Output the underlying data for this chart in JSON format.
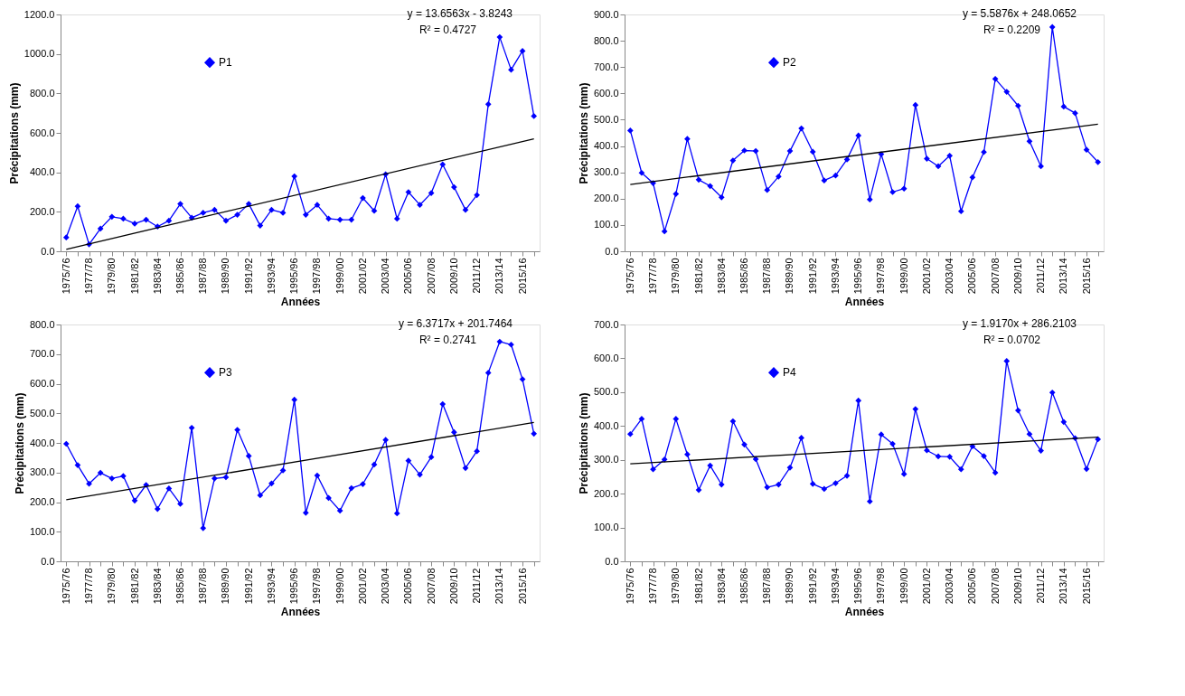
{
  "chart_data": [
    {
      "type": "line",
      "xlabel": "Années",
      "ylabel": "Précipitations (mm)",
      "marker": "diamond",
      "line_style": "solid",
      "grid": false,
      "legend": "top left",
      "categories": [
        "1975/76",
        null,
        "1977/78",
        null,
        "1979/80",
        null,
        "1981/82",
        null,
        "1983/84",
        null,
        "1985/86",
        null,
        "1987/88",
        null,
        "1989/90",
        null,
        "1991/92",
        null,
        "1993/94",
        null,
        "1995/96",
        null,
        "1997/98",
        null,
        "1999/00",
        null,
        "2001/02",
        null,
        "2003/04",
        null,
        "2005/06",
        null,
        "2007/08",
        null,
        "2009/10",
        null,
        "2011/12",
        null,
        "2013/14",
        null,
        "2015/16",
        null
      ],
      "ylim": [
        0,
        1200
      ],
      "yticks": [
        {
          "value": 0,
          "label": "0.0"
        },
        {
          "value": 200,
          "label": "200.0"
        },
        {
          "value": 400,
          "label": "400.0"
        },
        {
          "value": 600,
          "label": "600.0"
        },
        {
          "value": 800,
          "label": "800.0"
        },
        {
          "value": 1000,
          "label": "1000.0"
        },
        {
          "value": 1200,
          "label": "1200.0"
        }
      ],
      "annotations": [
        "y = 13.6563x - 3.8243",
        "R² = 0.4727"
      ],
      "series": [
        {
          "name": "P1",
          "color": "#0000ff",
          "values": [
            70,
            228,
            35,
            115,
            175,
            165,
            140,
            160,
            125,
            155,
            240,
            170,
            195,
            210,
            155,
            185,
            240,
            130,
            210,
            195,
            380,
            185,
            235,
            165,
            160,
            160,
            270,
            205,
            390,
            165,
            300,
            235,
            295,
            440,
            325,
            210,
            285,
            745,
            1085,
            920,
            1015,
            685
          ]
        },
        {
          "type": "line",
          "color": "#000000",
          "marker": "none",
          "values": [
            10,
            null,
            null,
            null,
            null,
            null,
            null,
            null,
            null,
            null,
            null,
            null,
            null,
            null,
            null,
            null,
            null,
            null,
            null,
            null,
            null,
            null,
            null,
            null,
            null,
            null,
            null,
            null,
            null,
            null,
            null,
            null,
            null,
            null,
            null,
            null,
            null,
            null,
            null,
            null,
            null,
            570
          ]
        }
      ]
    },
    {
      "type": "line",
      "xlabel": "Années",
      "ylabel": "Précipitations (mm)",
      "marker": "diamond",
      "line_style": "solid",
      "grid": false,
      "legend": "top left",
      "categories": [
        "1975/76",
        null,
        "1977/78",
        null,
        "1979/80",
        null,
        "1981/82",
        null,
        "1983/84",
        null,
        "1985/86",
        null,
        "1987/88",
        null,
        "1989/90",
        null,
        "1991/92",
        null,
        "1993/94",
        null,
        "1995/96",
        null,
        "1997/98",
        null,
        "1999/00",
        null,
        "2001/02",
        null,
        "2003/04",
        null,
        "2005/06",
        null,
        "2007/08",
        null,
        "2009/10",
        null,
        "2011/12",
        null,
        "2013/14",
        null,
        "2015/16",
        null
      ],
      "ylim": [
        0,
        900
      ],
      "yticks": [
        {
          "value": 0,
          "label": "0.0"
        },
        {
          "value": 100,
          "label": "100.0"
        },
        {
          "value": 200,
          "label": "200.0"
        },
        {
          "value": 300,
          "label": "300.0"
        },
        {
          "value": 400,
          "label": "400.0"
        },
        {
          "value": 500,
          "label": "500.0"
        },
        {
          "value": 600,
          "label": "600.0"
        },
        {
          "value": 700,
          "label": "700.0"
        },
        {
          "value": 800,
          "label": "800.0"
        },
        {
          "value": 900,
          "label": "900.0"
        }
      ],
      "annotations": [
        "y = 5.5876x + 248.0652",
        "R² = 0.2209"
      ],
      "series": [
        {
          "name": "P2",
          "color": "#0000ff",
          "values": [
            459,
            298,
            259,
            76,
            218,
            427,
            272,
            248,
            205,
            345,
            383,
            381,
            233,
            284,
            381,
            467,
            378,
            269,
            288,
            349,
            440,
            197,
            369,
            225,
            238,
            556,
            352,
            323,
            363,
            152,
            281,
            377,
            655,
            606,
            553,
            418,
            323,
            852,
            550,
            525,
            386,
            339
          ]
        },
        {
          "type": "line",
          "color": "#000000",
          "marker": "none",
          "values": [
            254,
            null,
            null,
            null,
            null,
            null,
            null,
            null,
            null,
            null,
            null,
            null,
            null,
            null,
            null,
            null,
            null,
            null,
            null,
            null,
            null,
            null,
            null,
            null,
            null,
            null,
            null,
            null,
            null,
            null,
            null,
            null,
            null,
            null,
            null,
            null,
            null,
            null,
            null,
            null,
            null,
            483
          ]
        }
      ]
    },
    {
      "type": "line",
      "xlabel": "Années",
      "ylabel": "Précipitations (mm)",
      "marker": "diamond",
      "line_style": "solid",
      "grid": false,
      "legend": "top left",
      "categories": [
        "1975/76",
        null,
        "1977/78",
        null,
        "1979/80",
        null,
        "1981/82",
        null,
        "1983/84",
        null,
        "1985/86",
        null,
        "1987/88",
        null,
        "1989/90",
        null,
        "1991/92",
        null,
        "1993/94",
        null,
        "1995/96",
        null,
        "1997/98",
        null,
        "1999/00",
        null,
        "2001/02",
        null,
        "2003/04",
        null,
        "2005/06",
        null,
        "2007/08",
        null,
        "2009/10",
        null,
        "2011/12",
        null,
        "2013/14",
        null,
        "2015/16",
        null
      ],
      "ylim": [
        0,
        800
      ],
      "yticks": [
        {
          "value": 0,
          "label": "0.0"
        },
        {
          "value": 100,
          "label": "100.0"
        },
        {
          "value": 200,
          "label": "200.0"
        },
        {
          "value": 300,
          "label": "300.0"
        },
        {
          "value": 400,
          "label": "400.0"
        },
        {
          "value": 500,
          "label": "500.0"
        },
        {
          "value": 600,
          "label": "600.0"
        },
        {
          "value": 700,
          "label": "700.0"
        },
        {
          "value": 800,
          "label": "800.0"
        }
      ],
      "annotations": [
        "y = 6.3717x + 201.7464",
        "R² = 0.2741"
      ],
      "series": [
        {
          "name": "P3",
          "color": "#0000ff",
          "values": [
            397,
            325,
            262,
            299,
            280,
            288,
            205,
            258,
            177,
            246,
            194,
            451,
            112,
            280,
            284,
            444,
            356,
            223,
            263,
            307,
            546,
            164,
            290,
            214,
            171,
            247,
            261,
            327,
            410,
            162,
            340,
            293,
            352,
            531,
            436,
            315,
            372,
            637,
            742,
            732,
            615,
            431
          ]
        },
        {
          "type": "line",
          "color": "#000000",
          "marker": "none",
          "values": [
            208,
            null,
            null,
            null,
            null,
            null,
            null,
            null,
            null,
            null,
            null,
            null,
            null,
            null,
            null,
            null,
            null,
            null,
            null,
            null,
            null,
            null,
            null,
            null,
            null,
            null,
            null,
            null,
            null,
            null,
            null,
            null,
            null,
            null,
            null,
            null,
            null,
            null,
            null,
            null,
            null,
            469
          ]
        }
      ]
    },
    {
      "type": "line",
      "xlabel": "Années",
      "ylabel": "Précipitations (mm)",
      "marker": "diamond",
      "line_style": "solid",
      "grid": false,
      "legend": "top left",
      "categories": [
        "1975/76",
        null,
        "1977/78",
        null,
        "1979/80",
        null,
        "1981/82",
        null,
        "1983/84",
        null,
        "1985/86",
        null,
        "1987/88",
        null,
        "1989/90",
        null,
        "1991/92",
        null,
        "1993/94",
        null,
        "1995/96",
        null,
        "1997/98",
        null,
        "1999/00",
        null,
        "2001/02",
        null,
        "2003/04",
        null,
        "2005/06",
        null,
        "2007/08",
        null,
        "2009/10",
        null,
        "2011/12",
        null,
        "2013/14",
        null,
        "2015/16",
        null
      ],
      "ylim": [
        0,
        700
      ],
      "yticks": [
        {
          "value": 0,
          "label": "0.0"
        },
        {
          "value": 100,
          "label": "100.0"
        },
        {
          "value": 200,
          "label": "200.0"
        },
        {
          "value": 300,
          "label": "300.0"
        },
        {
          "value": 400,
          "label": "400.0"
        },
        {
          "value": 500,
          "label": "500.0"
        },
        {
          "value": 600,
          "label": "600.0"
        },
        {
          "value": 700,
          "label": "700.0"
        }
      ],
      "annotations": [
        "y = 1.9170x + 286.2103",
        "R² = 0.0702"
      ],
      "series": [
        {
          "name": "P4",
          "color": "#0000ff",
          "values": [
            376,
            421,
            272,
            301,
            421,
            316,
            211,
            283,
            227,
            414,
            345,
            302,
            219,
            227,
            277,
            365,
            229,
            214,
            231,
            253,
            475,
            177,
            375,
            347,
            258,
            450,
            328,
            310,
            309,
            272,
            340,
            311,
            262,
            592,
            446,
            376,
            327,
            499,
            412,
            364,
            273,
            361
          ]
        },
        {
          "type": "line",
          "color": "#000000",
          "marker": "none",
          "values": [
            288,
            null,
            null,
            null,
            null,
            null,
            null,
            null,
            null,
            null,
            null,
            null,
            null,
            null,
            null,
            null,
            null,
            null,
            null,
            null,
            null,
            null,
            null,
            null,
            null,
            null,
            null,
            null,
            null,
            null,
            null,
            null,
            null,
            null,
            null,
            null,
            null,
            null,
            null,
            null,
            null,
            367
          ]
        }
      ]
    }
  ]
}
